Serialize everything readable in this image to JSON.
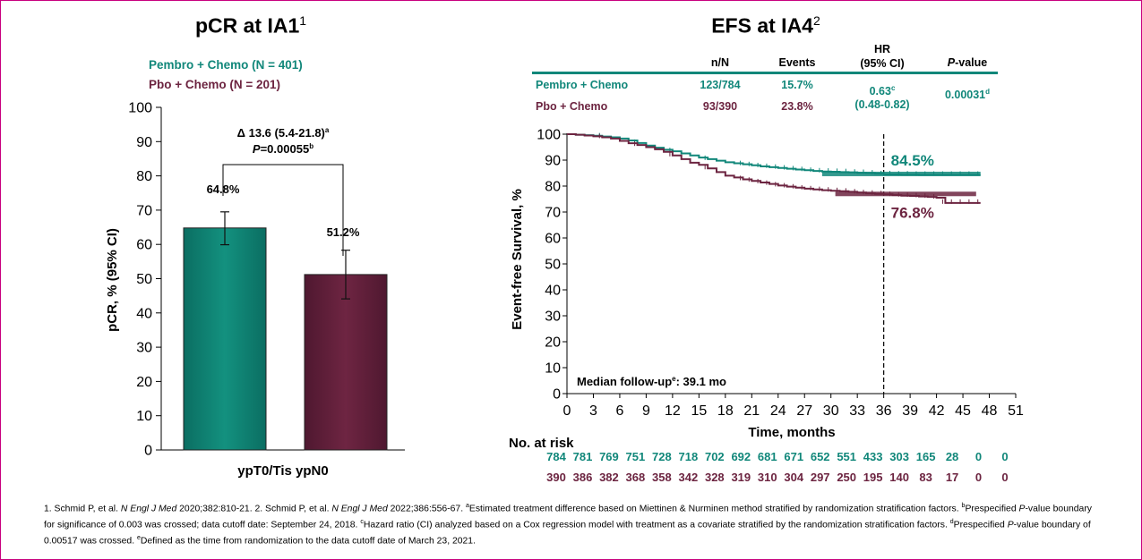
{
  "colors": {
    "pembro": "#11877a",
    "pbo": "#6c2440",
    "border": "#c8007f"
  },
  "left_panel": {
    "title": "pCR at IA1",
    "title_sup": "1",
    "legend": [
      "Pembro + Chemo (N = 401)",
      "Pbo + Chemo (N = 201)"
    ],
    "delta_line1": "Δ 13.6 (5.4-21.8)",
    "delta_line1_sup": "a",
    "delta_p_label": "P",
    "delta_p_value": "=0.00055",
    "delta_p_sup": "b"
  },
  "right_panel": {
    "title": "EFS at IA4",
    "title_sup": "2",
    "table": {
      "headers": {
        "nn": "n/N",
        "events": "Events",
        "hr_line1": "HR",
        "hr_line2": "(95% CI)",
        "p_italic": "P",
        "p_rest": "-value"
      },
      "rows": [
        {
          "arm": "Pembro + Chemo",
          "nn": "123/784",
          "events": "15.7%"
        },
        {
          "arm": "Pbo + Chemo",
          "nn": "93/390",
          "events": "23.8%"
        }
      ],
      "hr_value": "0.63",
      "hr_sup": "c",
      "hr_ci": "(0.48-0.82)",
      "p_value": "0.00031",
      "p_sup": "d"
    },
    "median_followup": "Median follow-up",
    "median_followup_sup": "e",
    "median_followup_value": ": 39.1 mo",
    "risk_title": "No. at risk",
    "risk_pembro": [
      "784",
      "781",
      "769",
      "751",
      "728",
      "718",
      "702",
      "692",
      "681",
      "671",
      "652",
      "551",
      "433",
      "303",
      "165",
      "28",
      "0",
      "0"
    ],
    "risk_pbo": [
      "390",
      "386",
      "382",
      "368",
      "358",
      "342",
      "328",
      "319",
      "310",
      "304",
      "297",
      "250",
      "195",
      "140",
      "83",
      "17",
      "0",
      "0"
    ]
  },
  "chart_data": [
    {
      "type": "bar",
      "title": "pCR at IA1",
      "xlabel": "ypT0/Tis ypN0",
      "ylabel": "pCR, % (95% CI)",
      "ylim": [
        0,
        100
      ],
      "yticks": [
        "0",
        "10",
        "20",
        "30",
        "40",
        "50",
        "60",
        "70",
        "80",
        "90",
        "100"
      ],
      "categories": [
        "Pembro + Chemo",
        "Pbo + Chemo"
      ],
      "values": [
        64.8,
        51.2
      ],
      "value_labels": [
        "64.8%",
        "51.2%"
      ],
      "ci": [
        [
          59.9,
          69.5
        ],
        [
          44.1,
          58.3
        ]
      ]
    },
    {
      "type": "line",
      "title": "EFS at IA4",
      "xlabel": "Time, months",
      "ylabel": "Event-free Survival, %",
      "xlim": [
        0,
        51
      ],
      "ylim": [
        0,
        100
      ],
      "xticks": [
        "0",
        "3",
        "6",
        "9",
        "12",
        "15",
        "18",
        "21",
        "24",
        "27",
        "30",
        "33",
        "36",
        "39",
        "42",
        "45",
        "48",
        "51"
      ],
      "yticks": [
        "0",
        "10",
        "20",
        "30",
        "40",
        "50",
        "60",
        "70",
        "80",
        "90",
        "100"
      ],
      "reference_x": 36,
      "series": [
        {
          "name": "Pembro + Chemo",
          "label": "84.5%",
          "x": [
            0,
            1,
            2,
            3,
            4,
            5,
            6,
            7,
            8,
            9,
            10,
            11,
            12,
            13,
            14,
            15,
            16,
            17,
            18,
            19,
            20,
            21,
            22,
            23,
            24,
            25,
            26,
            27,
            28,
            29,
            30,
            31,
            32,
            33,
            34,
            35,
            36,
            37,
            38,
            39,
            40,
            41,
            42,
            43,
            44,
            45,
            46,
            47
          ],
          "y": [
            100,
            99.8,
            99.6,
            99.4,
            99.1,
            98.8,
            98.3,
            97.6,
            96.6,
            95.6,
            94.8,
            94,
            93.4,
            92.6,
            91.8,
            91,
            90.4,
            89.8,
            89.2,
            88.8,
            88.4,
            88,
            87.6,
            87.3,
            87,
            86.7,
            86.4,
            86.1,
            85.8,
            85.6,
            85.5,
            85.4,
            85.3,
            85.1,
            85,
            84.8,
            84.5,
            84.5,
            84.4,
            84.4,
            84.3,
            84.3,
            84.3,
            84.3,
            84.3,
            84.3,
            84.3,
            84.3
          ]
        },
        {
          "name": "Pbo + Chemo",
          "label": "76.8%",
          "x": [
            0,
            1,
            2,
            3,
            4,
            5,
            6,
            7,
            8,
            9,
            10,
            11,
            12,
            13,
            14,
            15,
            16,
            17,
            18,
            19,
            20,
            21,
            22,
            23,
            24,
            25,
            26,
            27,
            28,
            29,
            30,
            31,
            32,
            33,
            34,
            35,
            36,
            37,
            38,
            39,
            40,
            41,
            42,
            43,
            44,
            45,
            46,
            47
          ],
          "y": [
            100,
            99.8,
            99.5,
            99.2,
            98.8,
            98.3,
            97.4,
            96.5,
            95.8,
            95,
            94.2,
            93.2,
            91.8,
            90.4,
            89,
            88.2,
            86.8,
            85.4,
            84,
            83.3,
            82.6,
            82,
            81.4,
            80.8,
            80.2,
            79.8,
            79.4,
            79,
            78.7,
            78.4,
            78.2,
            78,
            77.8,
            77.5,
            77.2,
            77,
            76.8,
            76.5,
            76.3,
            76.2,
            76,
            75.8,
            75.5,
            73.5,
            73.5,
            73.5,
            73.5,
            73.5
          ]
        }
      ]
    }
  ],
  "footnote": {
    "ref1_pre": "1. Schmid P, et al. ",
    "journal1": "N Engl J Med",
    "ref1_post": " 2020;382:810-21. 2. Schmid P, et al. ",
    "journal2": "N Engl J Med",
    "ref2_post": " 2022;386:556-67. ",
    "a_sup": "a",
    "a_text": "Estimated treatment difference based on Miettinen & Nurminen method stratified by randomization stratification factors. ",
    "b_sup": "b",
    "b_pre": "Prespecified ",
    "b_p": "P",
    "b_text": "-value boundary for significance of 0.003 was crossed; data cutoff date: September 24, 2018. ",
    "c_sup": "c",
    "c_text": "Hazard ratio (CI) analyzed based on a Cox regression model with treatment as a covariate stratified by the randomization stratification factors. ",
    "d_sup": "d",
    "d_pre": "Prespecified ",
    "d_p": "P",
    "d_text": "-value boundary of 0.00517 was crossed. ",
    "e_sup": "e",
    "e_text": "Defined as the time from randomization to the data cutoff date of March 23, 2021."
  }
}
